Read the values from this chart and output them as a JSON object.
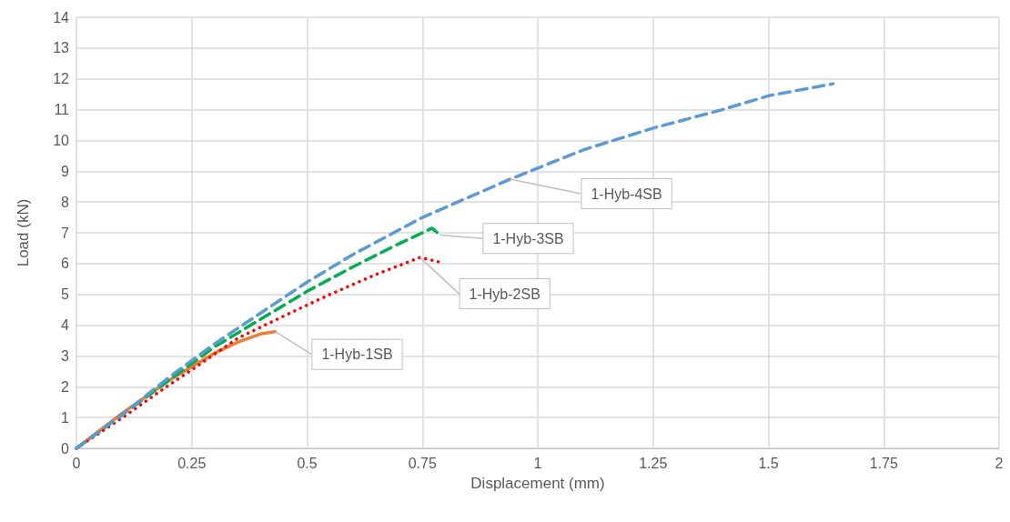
{
  "chart_data": {
    "type": "line",
    "xlabel": "Displacement (mm)",
    "ylabel": "Load (kN)",
    "xlim": [
      0,
      2
    ],
    "xticks": [
      0,
      0.25,
      0.5,
      0.75,
      1,
      1.25,
      1.5,
      1.75,
      2
    ],
    "ylim": [
      0,
      14
    ],
    "yticks": [
      0,
      1,
      2,
      3,
      4,
      5,
      6,
      7,
      8,
      9,
      10,
      11,
      12,
      13,
      14
    ],
    "grid": true,
    "legend": false,
    "marker": "none",
    "series": [
      {
        "name": "1-Hyb-1SB",
        "color": "#ed7d31",
        "line_style": "solid",
        "x": [
          0,
          0.1,
          0.2,
          0.25,
          0.3,
          0.35,
          0.4,
          0.431
        ],
        "values": [
          0,
          1.15,
          2.2,
          2.65,
          3.1,
          3.45,
          3.72,
          3.79
        ]
      },
      {
        "name": "1-Hyb-2SB",
        "color": "#ff0000",
        "line_style": "dotted",
        "x": [
          0,
          0.1,
          0.2,
          0.25,
          0.35,
          0.45,
          0.55,
          0.65,
          0.745,
          0.787
        ],
        "values": [
          0,
          1.0,
          2.05,
          2.55,
          3.58,
          4.3,
          5.0,
          5.65,
          6.2,
          6.05
        ]
      },
      {
        "name": "1-Hyb-3SB",
        "color": "#00b050",
        "line_style": "dashed",
        "x": [
          0,
          0.1,
          0.2,
          0.3,
          0.4,
          0.5,
          0.6,
          0.7,
          0.771,
          0.788
        ],
        "values": [
          0,
          1.1,
          2.2,
          3.3,
          4.2,
          5.1,
          5.9,
          6.65,
          7.15,
          6.93
        ]
      },
      {
        "name": "1-Hyb-4SB",
        "color": "#5b9bd5",
        "line_style": "dashed",
        "x": [
          0,
          0.1,
          0.2,
          0.3,
          0.4,
          0.5,
          0.6,
          0.75,
          0.94,
          1.1,
          1.25,
          1.4,
          1.5,
          1.64
        ],
        "values": [
          0,
          1.1,
          2.3,
          3.4,
          4.4,
          5.4,
          6.3,
          7.5,
          8.74,
          9.7,
          10.4,
          11.0,
          11.45,
          11.84
        ]
      }
    ]
  }
}
